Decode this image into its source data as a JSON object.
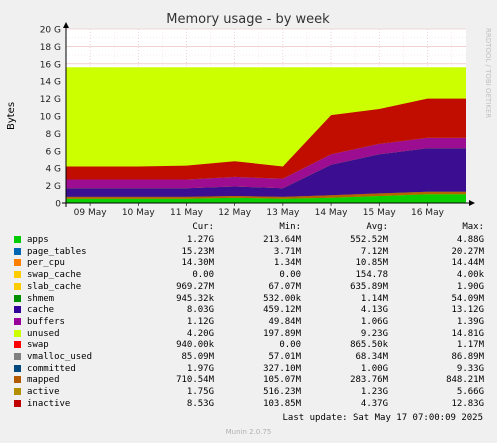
{
  "chart_data": {
    "type": "area",
    "title": "Memory usage - by week",
    "ylabel": "Bytes",
    "side_label": "RRDTOOL / TOBI OETIKER",
    "ylim": [
      0,
      20
    ],
    "y_ticks": [
      "0",
      "2 G",
      "4 G",
      "6 G",
      "8 G",
      "10 G",
      "12 G",
      "14 G",
      "16 G",
      "18 G",
      "20 G"
    ],
    "x_ticks": [
      "09 May",
      "10 May",
      "11 May",
      "12 May",
      "13 May",
      "14 May",
      "15 May",
      "16 May"
    ],
    "grid": true,
    "unused_ceiling_gb": 15.6,
    "series_approx_gb": {
      "days": [
        9,
        10,
        11,
        12,
        13,
        14,
        15,
        16
      ],
      "cache": [
        1.0,
        1.0,
        1.0,
        1.1,
        1.0,
        3.5,
        4.5,
        5.0
      ],
      "inactive": [
        1.5,
        1.5,
        1.6,
        1.8,
        1.4,
        4.5,
        4.0,
        4.5
      ],
      "buffers": [
        1.0,
        1.0,
        1.0,
        1.1,
        1.1,
        1.2,
        1.2,
        1.2
      ],
      "apps": [
        0.5,
        0.5,
        0.5,
        0.6,
        0.5,
        0.6,
        0.8,
        1.0
      ],
      "mapped": [
        0.2,
        0.2,
        0.2,
        0.2,
        0.2,
        0.3,
        0.3,
        0.3
      ]
    },
    "colors": {
      "background": "#ffffff",
      "plot_bg": "#fafafa",
      "grid": "#e8b0b0",
      "frame": "#000000"
    }
  },
  "legend": {
    "headers": [
      "Cur:",
      "Min:",
      "Avg:",
      "Max:"
    ],
    "items": [
      {
        "name": "apps",
        "color": "#00cc00",
        "cur": "1.27G",
        "min": "213.64M",
        "avg": "552.52M",
        "max": "4.88G"
      },
      {
        "name": "page_tables",
        "color": "#0066b3",
        "cur": "15.23M",
        "min": "3.71M",
        "avg": "7.12M",
        "max": "20.27M"
      },
      {
        "name": "per_cpu",
        "color": "#ff8000",
        "cur": "14.30M",
        "min": "1.34M",
        "avg": "10.85M",
        "max": "14.44M"
      },
      {
        "name": "swap_cache",
        "color": "#ffcc00",
        "cur": "0.00",
        "min": "0.00",
        "avg": "154.78",
        "max": "4.00k"
      },
      {
        "name": "slab_cache",
        "color": "#ffcc00",
        "cur": "969.27M",
        "min": "67.07M",
        "avg": "635.89M",
        "max": "1.90G"
      },
      {
        "name": "shmem",
        "color": "#008f00",
        "cur": "945.32k",
        "min": "532.00k",
        "avg": "1.14M",
        "max": "54.09M"
      },
      {
        "name": "cache",
        "color": "#330099",
        "cur": "8.03G",
        "min": "459.12M",
        "avg": "4.13G",
        "max": "13.12G"
      },
      {
        "name": "buffers",
        "color": "#990099",
        "cur": "1.12G",
        "min": "49.84M",
        "avg": "1.06G",
        "max": "1.39G"
      },
      {
        "name": "unused",
        "color": "#ccff00",
        "cur": "4.20G",
        "min": "197.89M",
        "avg": "9.23G",
        "max": "14.81G"
      },
      {
        "name": "swap",
        "color": "#ff0000",
        "cur": "940.00k",
        "min": "0.00",
        "avg": "865.50k",
        "max": "1.17M"
      },
      {
        "name": "vmalloc_used",
        "color": "#808080",
        "cur": "85.09M",
        "min": "57.01M",
        "avg": "68.34M",
        "max": "86.89M"
      },
      {
        "name": "committed",
        "color": "#00487d",
        "cur": "1.97G",
        "min": "327.10M",
        "avg": "1.00G",
        "max": "9.33G"
      },
      {
        "name": "mapped",
        "color": "#b35a00",
        "cur": "710.54M",
        "min": "105.07M",
        "avg": "283.76M",
        "max": "848.21M"
      },
      {
        "name": "active",
        "color": "#b38f00",
        "cur": "1.75G",
        "min": "516.23M",
        "avg": "1.23G",
        "max": "5.66G"
      },
      {
        "name": "inactive",
        "color": "#c00000",
        "cur": "8.53G",
        "min": "103.85M",
        "avg": "4.37G",
        "max": "12.83G"
      }
    ]
  },
  "footer": {
    "last_update": "Last update:  Sat May 17 07:00:09 2025",
    "version": "Munin 2.0.75"
  }
}
